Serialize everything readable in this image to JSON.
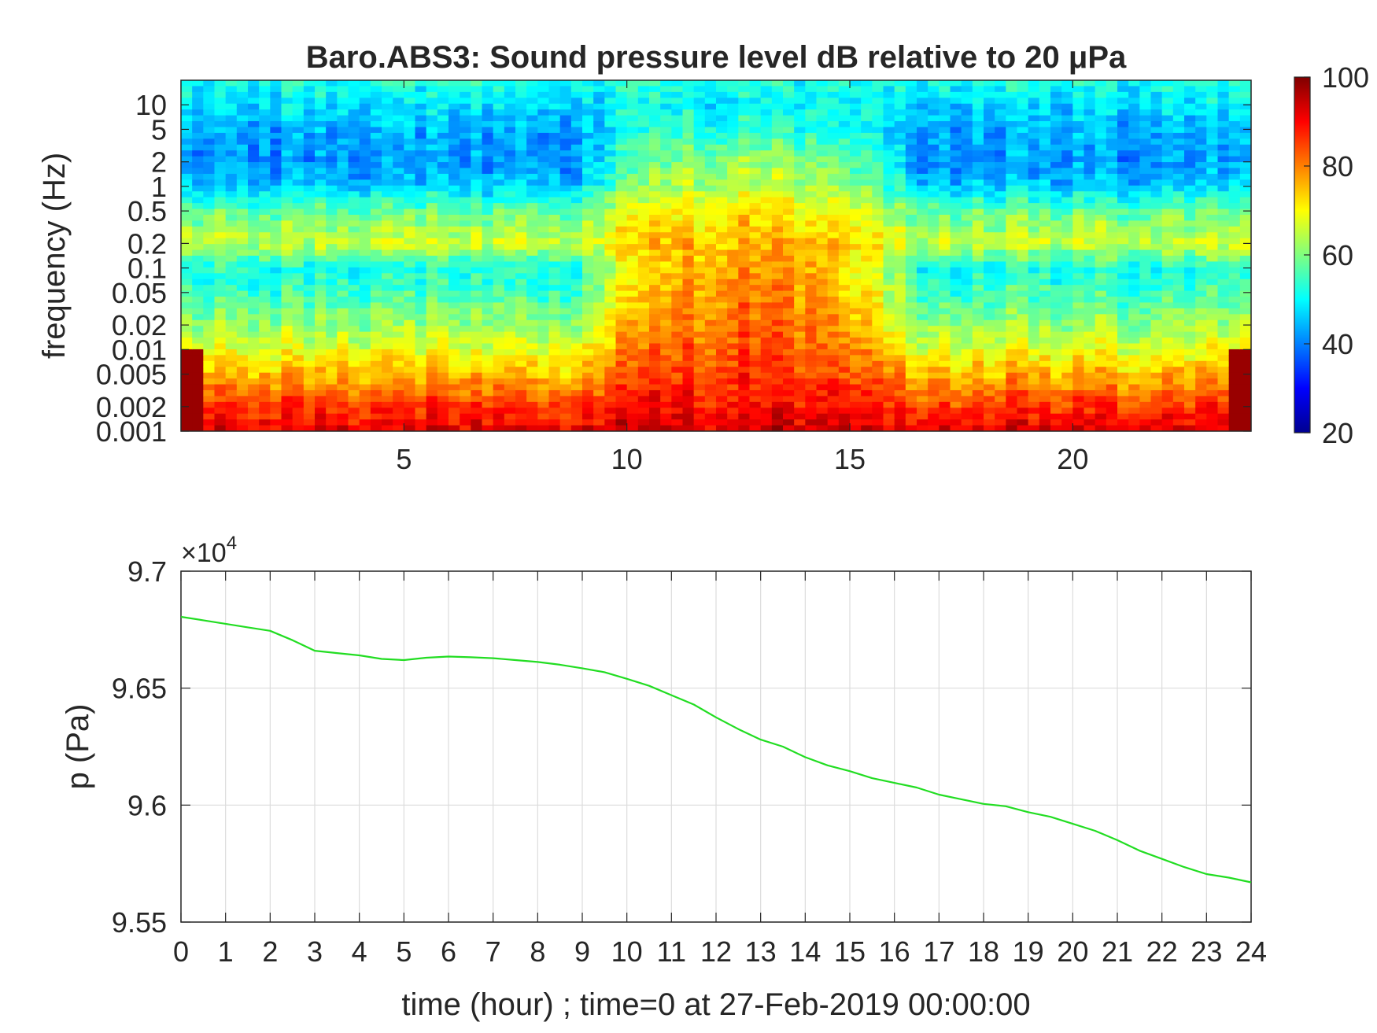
{
  "chart_data": [
    {
      "type": "heatmap",
      "title": "Baro.ABS3: Sound pressure level dB relative to 20 μPa",
      "ylabel": "frequency (Hz)",
      "xlabel": "",
      "y_scale": "log",
      "xlim": [
        0,
        24
      ],
      "ylim": [
        0.001,
        20
      ],
      "xticks": [
        5,
        10,
        15,
        20
      ],
      "xtick_labels": [
        "5",
        "10",
        "15",
        "20"
      ],
      "yticks": [
        0.001,
        0.002,
        0.005,
        0.01,
        0.02,
        0.05,
        0.1,
        0.2,
        0.5,
        1,
        2,
        5,
        10
      ],
      "ytick_labels": [
        "0.001",
        "0.002",
        "0.005",
        "0.01",
        "0.02",
        "0.05",
        "0.1",
        "0.2",
        "0.5",
        "1",
        "2",
        "5",
        "10"
      ],
      "colorbar": {
        "colormap": "jet",
        "clim": [
          20,
          100
        ],
        "ticks": [
          20,
          40,
          60,
          80,
          100
        ],
        "tick_labels": [
          "20",
          "40",
          "60",
          "80",
          "100"
        ]
      },
      "level_profile_db": {
        "frequency_hz": [
          20,
          10,
          5,
          2,
          1,
          0.5,
          0.2,
          0.1,
          0.05,
          0.02,
          0.01,
          0.005,
          0.002,
          0.001
        ],
        "quiet_hours": [
          52,
          48,
          44,
          42,
          46,
          58,
          66,
          52,
          55,
          62,
          68,
          76,
          86,
          92
        ],
        "active_hours": [
          52,
          50,
          54,
          62,
          66,
          72,
          76,
          78,
          80,
          82,
          84,
          86,
          90,
          94
        ]
      },
      "active_span_hours": [
        9,
        16.5
      ]
    },
    {
      "type": "line",
      "ylabel": "p (Pa)",
      "xlabel": "time (hour) ; time=0 at 27-Feb-2019 00:00:00",
      "y_exponent_label": "×10",
      "y_exponent": "4",
      "xlim": [
        0,
        24
      ],
      "ylim": [
        95500,
        97000
      ],
      "grid": true,
      "xticks": [
        0,
        1,
        2,
        3,
        4,
        5,
        6,
        7,
        8,
        9,
        10,
        11,
        12,
        13,
        14,
        15,
        16,
        17,
        18,
        19,
        20,
        21,
        22,
        23,
        24
      ],
      "xtick_labels": [
        "0",
        "1",
        "2",
        "3",
        "4",
        "5",
        "6",
        "7",
        "8",
        "9",
        "10",
        "11",
        "12",
        "13",
        "14",
        "15",
        "16",
        "17",
        "18",
        "19",
        "20",
        "21",
        "22",
        "23",
        "24"
      ],
      "yticks": [
        95500,
        96000,
        96500,
        97000
      ],
      "ytick_labels": [
        "9.55",
        "9.6",
        "9.65",
        "9.7"
      ],
      "line_color": "#22dd22",
      "series": [
        {
          "x": [
            0,
            0.5,
            1,
            1.5,
            2,
            2.5,
            3,
            3.5,
            4,
            4.5,
            5,
            5.5,
            6,
            6.5,
            7,
            7.5,
            8,
            8.5,
            9,
            9.5,
            10,
            10.5,
            11,
            11.5,
            12,
            12.5,
            13,
            13.5,
            14,
            14.5,
            15,
            15.5,
            16,
            16.5,
            17,
            17.5,
            18,
            18.5,
            19,
            19.5,
            20,
            20.5,
            21,
            21.5,
            22,
            22.5,
            23,
            23.5,
            24
          ],
          "values": [
            96805,
            96790,
            96775,
            96760,
            96745,
            96705,
            96660,
            96650,
            96640,
            96625,
            96620,
            96630,
            96635,
            96632,
            96628,
            96620,
            96612,
            96600,
            96585,
            96568,
            96540,
            96510,
            96470,
            96430,
            96375,
            96325,
            96280,
            96250,
            96205,
            96170,
            96145,
            96115,
            96095,
            96075,
            96045,
            96025,
            96005,
            95995,
            95970,
            95950,
            95920,
            95890,
            95850,
            95805,
            95770,
            95735,
            95705,
            95690,
            95670
          ]
        }
      ]
    }
  ]
}
